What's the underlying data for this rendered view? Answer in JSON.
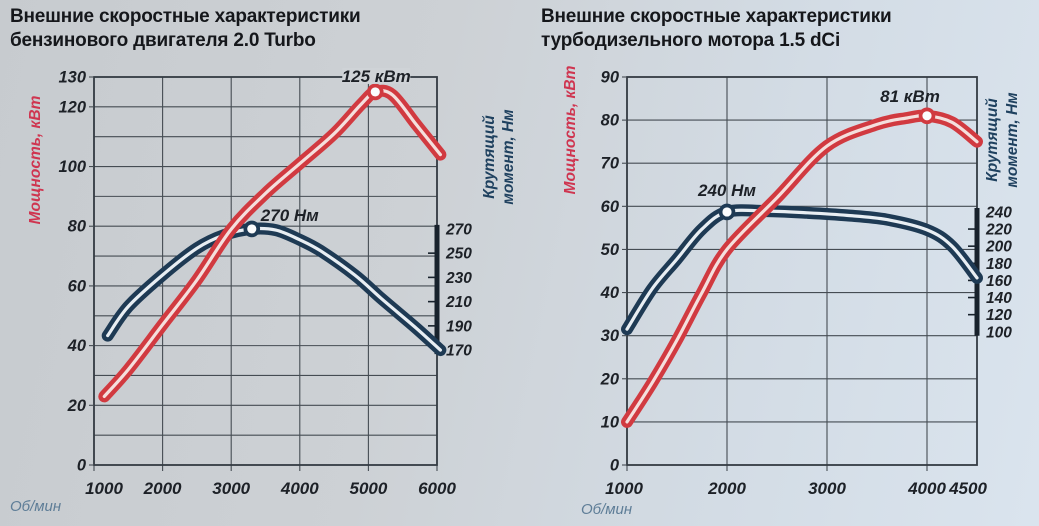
{
  "colors": {
    "page_bg_left": "#c7cbcf",
    "page_bg_right": "#dae4ee",
    "grid": "#454c53",
    "tick_text": "#1d2127",
    "power_label_red": "#cf3550",
    "torque_label_navy": "#1f415f",
    "rpm_label_blue": "#5e7d97",
    "label_bg": "#cfd3d7"
  },
  "chart_data": [
    {
      "type": "line",
      "title_lines": [
        "Внешние скоростные характеристики",
        "бензинового двигателя 2.0 Turbo"
      ],
      "power_axis": {
        "label": "Мощность, кВт",
        "min": 0,
        "max": 130,
        "grid_step": 10,
        "tick_labels": [
          130,
          120,
          100,
          80,
          60,
          40,
          20,
          0
        ]
      },
      "rpm_axis": {
        "label": "Об/мин",
        "min": 1000,
        "max": 6000,
        "grid_step": 1000,
        "tick_labels": [
          1000,
          2000,
          3000,
          4000,
          5000,
          6000
        ]
      },
      "torque_axis": {
        "label_line1": "Крутящий",
        "label_line2": "момент, Нм",
        "ticks": [
          270,
          250,
          230,
          210,
          190,
          170
        ],
        "max_tick_power_equiv": 79.1,
        "min_tick_power_equiv": 38.5
      },
      "series": [
        {
          "id": "torque",
          "name": "Крутящий момент",
          "unit": "Нм",
          "color": "#1e3a54",
          "inner_color": "#e8eef3",
          "points": [
            [
              1200,
              182
            ],
            [
              1500,
              206
            ],
            [
              2000,
              232
            ],
            [
              2500,
              254
            ],
            [
              2900,
              265
            ],
            [
              3300,
              270
            ],
            [
              3650,
              269
            ],
            [
              4000,
              261
            ],
            [
              4300,
              252
            ],
            [
              4800,
              232
            ],
            [
              5200,
              212
            ],
            [
              5700,
              188
            ],
            [
              6050,
              170
            ]
          ],
          "peak": {
            "rpm": 3300,
            "value": 270,
            "label": "270 Нм",
            "label_dx": 38,
            "label_dy": -14,
            "bg": false
          }
        },
        {
          "id": "power",
          "name": "Мощность",
          "unit": "кВт",
          "color": "#d13a40",
          "inner_color": "#f4dfdd",
          "points": [
            [
              1150,
              23
            ],
            [
              1500,
              32
            ],
            [
              2000,
              47
            ],
            [
              2500,
              62
            ],
            [
              3000,
              79
            ],
            [
              3500,
              91
            ],
            [
              4000,
              101
            ],
            [
              4500,
              111
            ],
            [
              4900,
              121
            ],
            [
              5100,
              125
            ],
            [
              5350,
              124
            ],
            [
              5700,
              114
            ],
            [
              6050,
              104
            ]
          ],
          "peak": {
            "rpm": 5100,
            "value": 125,
            "label": "125 кВт",
            "label_dx": 1,
            "label_dy": -16,
            "bg": true
          }
        }
      ]
    },
    {
      "type": "line",
      "title_lines": [
        "Внешние скоростные характеристики",
        "турбодизельного мотора 1.5 dCi"
      ],
      "power_axis": {
        "label": "Мощность, кВт",
        "min": 0,
        "max": 90,
        "grid_step": 10,
        "tick_labels": [
          90,
          80,
          70,
          60,
          50,
          40,
          30,
          20,
          10,
          0
        ]
      },
      "rpm_axis": {
        "label": "Об/мин",
        "min": 1000,
        "max": 4500,
        "grid_step": 1000,
        "tick_labels": [
          1000,
          2000,
          3000,
          4000,
          4500
        ]
      },
      "torque_axis": {
        "label_line1": "Крутящий",
        "label_line2": "момент, Нм",
        "ticks": [
          240,
          220,
          200,
          180,
          160,
          140,
          120,
          100
        ],
        "max_tick_power_equiv": 58.7,
        "min_tick_power_equiv": 30.9
      },
      "series": [
        {
          "id": "torque",
          "name": "Крутящий момент",
          "unit": "Нм",
          "color": "#1e3a54",
          "inner_color": "#e8eef3",
          "points": [
            [
              1000,
              103
            ],
            [
              1250,
              150
            ],
            [
              1500,
              185
            ],
            [
              1750,
              220
            ],
            [
              2000,
              240
            ],
            [
              2400,
              241
            ],
            [
              2800,
              239
            ],
            [
              3200,
              236
            ],
            [
              3600,
              231
            ],
            [
              4000,
              219
            ],
            [
              4250,
              200
            ],
            [
              4500,
              163
            ]
          ],
          "peak": {
            "rpm": 2000,
            "value": 240,
            "label": "240 Нм",
            "label_dx": 0,
            "label_dy": -22,
            "bg": false
          }
        },
        {
          "id": "power",
          "name": "Мощность",
          "unit": "кВт",
          "color": "#d13a40",
          "inner_color": "#f4dfdd",
          "points": [
            [
              1000,
              10
            ],
            [
              1250,
              19
            ],
            [
              1500,
              29
            ],
            [
              1750,
              40
            ],
            [
              2000,
              50
            ],
            [
              2500,
              62
            ],
            [
              3000,
              74
            ],
            [
              3500,
              79
            ],
            [
              3800,
              80.5
            ],
            [
              4000,
              81
            ],
            [
              4250,
              79.5
            ],
            [
              4500,
              75
            ]
          ],
          "peak": {
            "rpm": 4000,
            "value": 81,
            "label": "81 кВт",
            "label_dx": -17,
            "label_dy": -20,
            "bg": false
          }
        }
      ]
    }
  ]
}
